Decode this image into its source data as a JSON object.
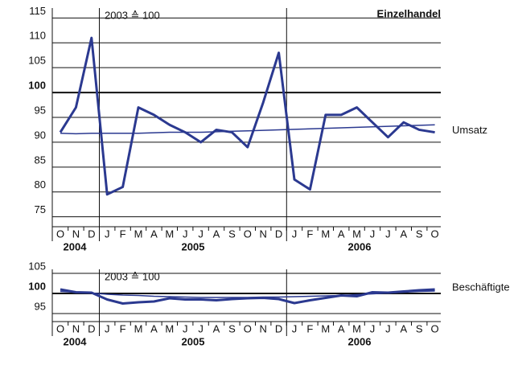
{
  "chart_data": [
    {
      "type": "line",
      "title": "Einzelhandel",
      "subtitle": "2003 ≙ 100",
      "categories": [
        "O",
        "N",
        "D",
        "J",
        "F",
        "M",
        "A",
        "M",
        "J",
        "J",
        "A",
        "S",
        "O",
        "N",
        "D",
        "J",
        "F",
        "M",
        "A",
        "M",
        "J",
        "J",
        "A",
        "S",
        "O"
      ],
      "years": [
        "2004",
        "2005",
        "2006"
      ],
      "series": [
        {
          "name": "Umsatz",
          "color": "#2b3990",
          "width": 3,
          "values": [
            92,
            97,
            111,
            79.5,
            81,
            97,
            95.5,
            93.5,
            92,
            90,
            92.5,
            92,
            89,
            98,
            108,
            82.5,
            80.5,
            95.5,
            95.5,
            97,
            94,
            91,
            94,
            92.5,
            92
          ]
        },
        {
          "color": "#2b3990",
          "width": 1.5,
          "values": [
            91.8,
            91.7,
            91.8,
            91.8,
            91.8,
            91.8,
            91.9,
            92,
            92,
            92,
            92.1,
            92.2,
            92.3,
            92.4,
            92.5,
            92.6,
            92.7,
            92.8,
            92.9,
            93,
            93.1,
            93.2,
            93.3,
            93.4,
            93.5
          ]
        }
      ],
      "ylim": [
        73,
        117
      ],
      "yticks": [
        75,
        80,
        85,
        90,
        95,
        100,
        105,
        110,
        115
      ],
      "baseline": 100,
      "grid": true
    },
    {
      "type": "line",
      "subtitle": "2003 ≙ 100",
      "categories": [
        "O",
        "N",
        "D",
        "J",
        "F",
        "M",
        "A",
        "M",
        "J",
        "J",
        "A",
        "S",
        "O",
        "N",
        "D",
        "J",
        "F",
        "M",
        "A",
        "M",
        "J",
        "J",
        "A",
        "S",
        "O"
      ],
      "years": [
        "2004",
        "2005",
        "2006"
      ],
      "series": [
        {
          "name": "Beschäftigte",
          "color": "#2b3990",
          "width": 3,
          "values": [
            101,
            100.3,
            100.2,
            98.5,
            97.5,
            97.8,
            98,
            98.8,
            98.5,
            98.5,
            98.3,
            98.6,
            98.8,
            98.9,
            98.6,
            97.6,
            98.3,
            98.9,
            99.5,
            99.3,
            100.3,
            100.2,
            100.5,
            100.8,
            101
          ]
        },
        {
          "color": "#2b3990",
          "width": 1.5,
          "values": [
            100.5,
            100.3,
            100.1,
            99.8,
            99.6,
            99.5,
            99.3,
            99.2,
            99.1,
            99,
            99,
            99,
            99,
            99.1,
            99.1,
            99.2,
            99.3,
            99.4,
            99.5,
            99.7,
            99.9,
            100.1,
            100.3,
            100.5,
            100.6
          ]
        }
      ],
      "ylim": [
        93,
        106
      ],
      "yticks": [
        95,
        100,
        105
      ],
      "baseline": 100,
      "grid": true
    }
  ]
}
